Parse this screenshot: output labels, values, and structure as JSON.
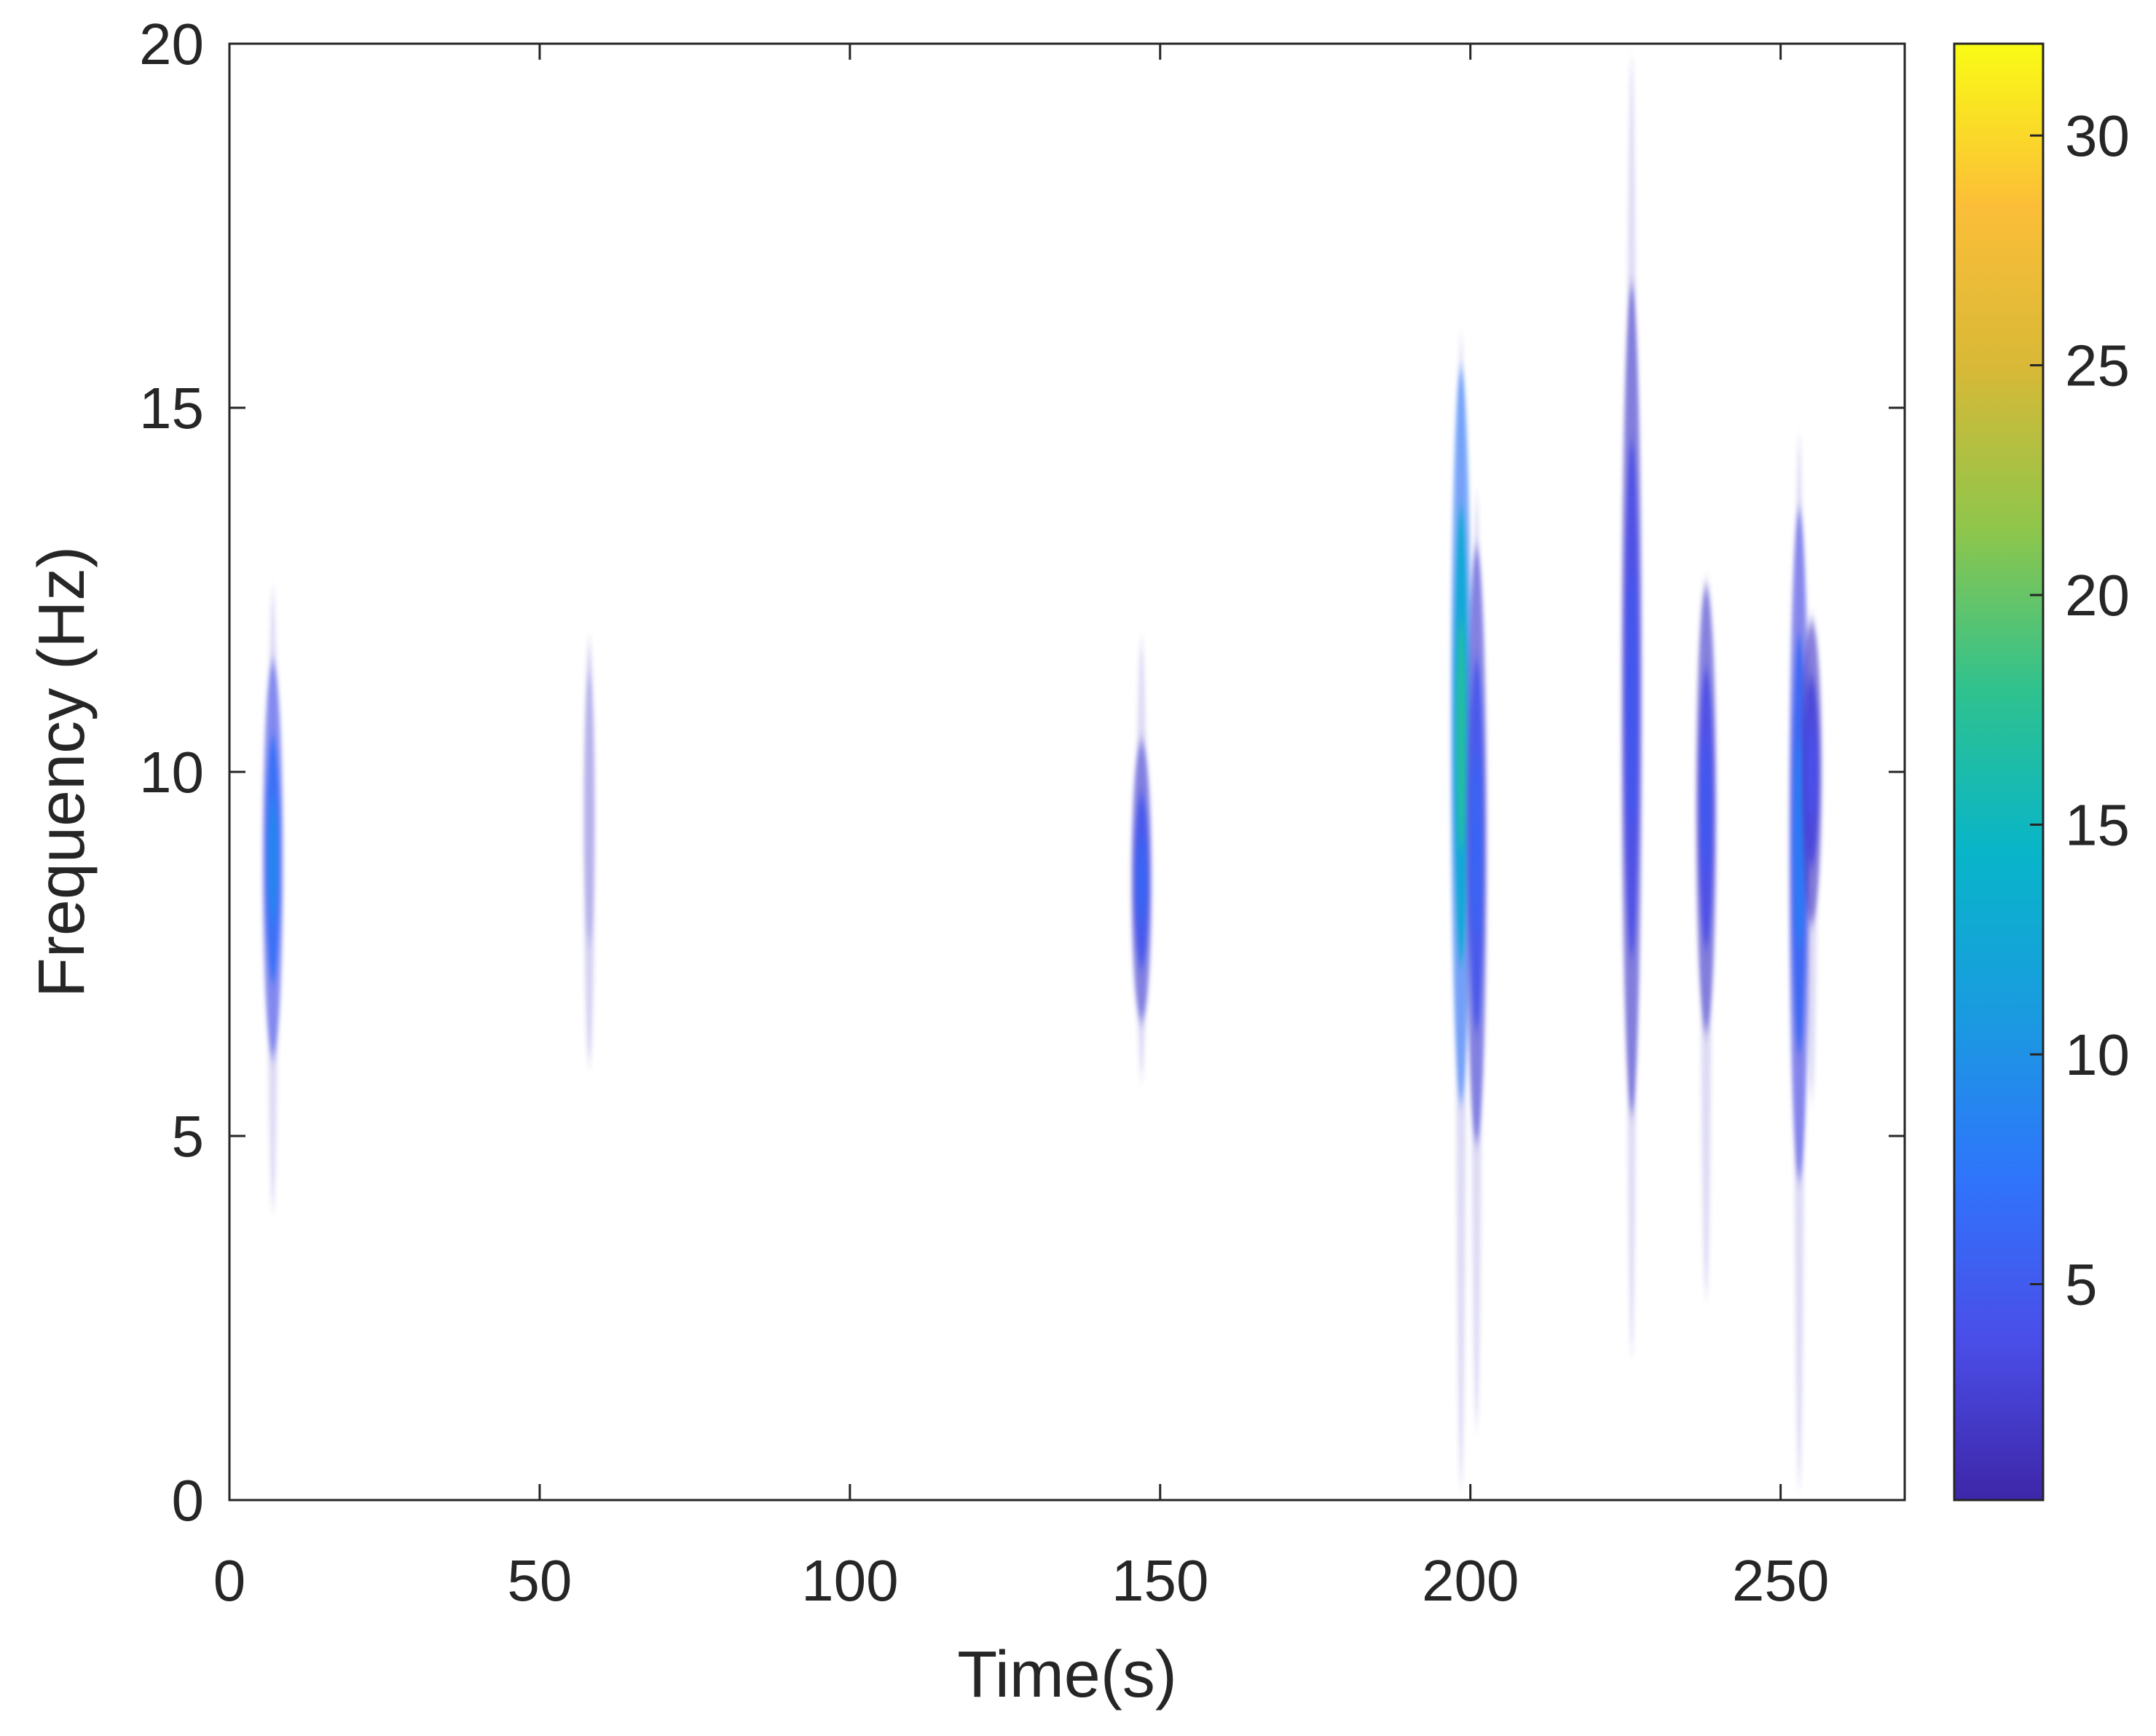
{
  "chart_data": {
    "type": "heatmap",
    "title": "",
    "xlabel": "Time(s)",
    "ylabel": "Frequency (Hz)",
    "xlim": [
      0,
      270
    ],
    "ylim": [
      0,
      20
    ],
    "x_ticks": [
      0,
      50,
      100,
      150,
      200,
      250
    ],
    "y_ticks": [
      0,
      5,
      10,
      15,
      20
    ],
    "x_tick_labels": [
      "0",
      "50",
      "100",
      "150",
      "200",
      "250"
    ],
    "y_tick_labels": [
      "0",
      "5",
      "10",
      "15",
      "20"
    ],
    "grid": false,
    "colormap": "parula",
    "colormap_stops": [
      "#3e26a8",
      "#4a4ee9",
      "#2f75fb",
      "#1a9be0",
      "#08b5c9",
      "#2fc28f",
      "#8ec64b",
      "#d8b937",
      "#fcbe38",
      "#f9fb15"
    ],
    "colorbar": {
      "range": [
        0.3,
        32
      ],
      "ticks": [
        5,
        10,
        15,
        20,
        25,
        30
      ],
      "tick_labels": [
        "5",
        "10",
        "15",
        "20",
        "25",
        "30"
      ]
    },
    "bursts": [
      {
        "time": 7,
        "freq_low": 4.0,
        "freq_high": 12.5,
        "peak_freq": 8.8,
        "peak_value": 9
      },
      {
        "time": 58,
        "freq_low": 6.0,
        "freq_high": 11.8,
        "peak_freq": 9.5,
        "peak_value": 2
      },
      {
        "time": 147,
        "freq_low": 5.8,
        "freq_high": 11.8,
        "peak_freq": 8.5,
        "peak_value": 6
      },
      {
        "time": 198.5,
        "freq_low": 0.2,
        "freq_high": 16.0,
        "peak_freq": 10.5,
        "peak_value": 17
      },
      {
        "time": 201,
        "freq_low": 1.0,
        "freq_high": 13.8,
        "peak_freq": 9.0,
        "peak_value": 6
      },
      {
        "time": 226,
        "freq_low": 2.0,
        "freq_high": 19.8,
        "peak_freq": 11.0,
        "peak_value": 5
      },
      {
        "time": 238,
        "freq_low": 2.8,
        "freq_high": 12.4,
        "peak_freq": 9.5,
        "peak_value": 5
      },
      {
        "time": 253,
        "freq_low": 0.2,
        "freq_high": 14.6,
        "peak_freq": 9.0,
        "peak_value": 8
      },
      {
        "time": 255,
        "freq_low": 5.5,
        "freq_high": 12.0,
        "peak_freq": 10.0,
        "peak_value": 4
      }
    ]
  }
}
